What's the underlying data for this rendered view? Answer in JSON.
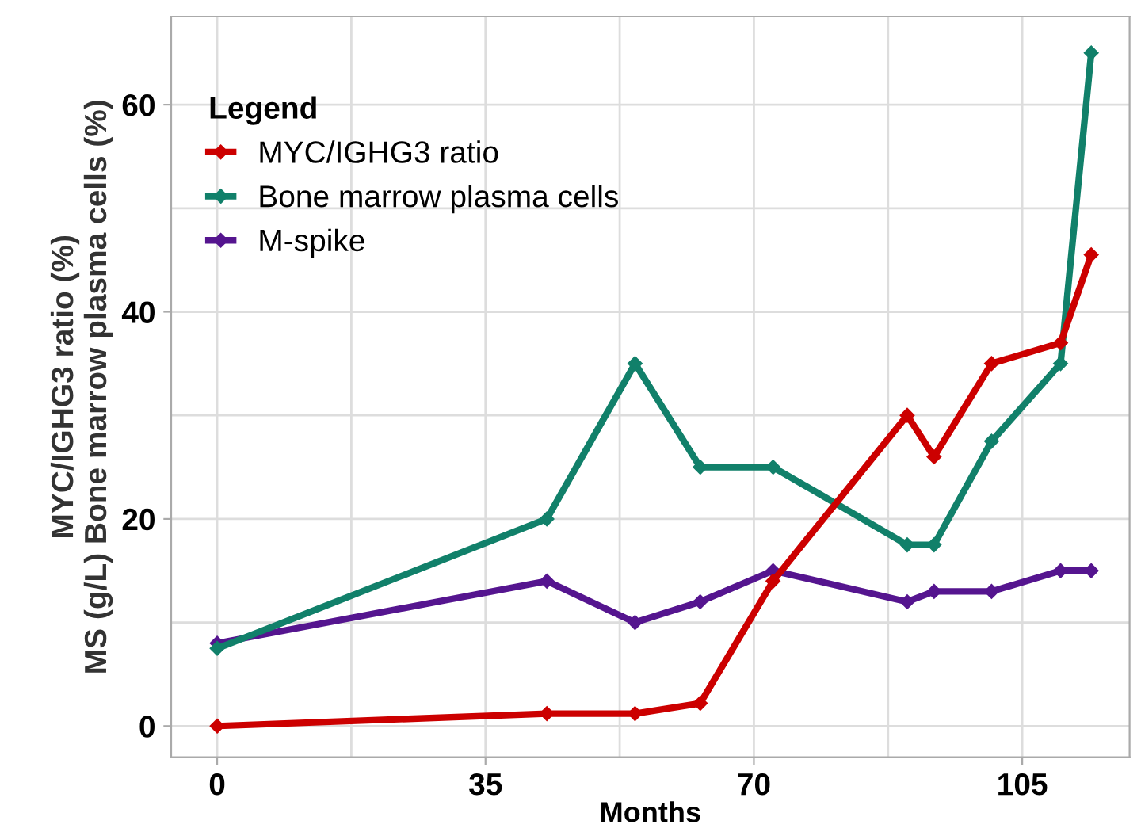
{
  "chart_data": {
    "type": "line",
    "xlabel": "Months",
    "ylabel": "MYC/IGHG3 ratio (%)\nMS (g/L) Bone marrow plasma cells (%)",
    "legend_title": "Legend",
    "x": [
      0,
      43,
      54.5,
      63,
      72.5,
      90,
      93.5,
      101,
      110,
      114
    ],
    "series": [
      {
        "name": "MYC/IGHG3 ratio",
        "color": "#cc0000",
        "values": [
          0,
          1.2,
          1.2,
          2.2,
          14,
          30,
          26,
          35,
          37,
          45.5
        ]
      },
      {
        "name": "Bone marrow plasma cells",
        "color": "#11806a",
        "values": [
          7.5,
          20,
          35,
          25,
          25,
          17.5,
          17.5,
          27.5,
          35,
          65
        ]
      },
      {
        "name": "M-spike",
        "color": "#55158f",
        "values": [
          8,
          14,
          10,
          12,
          15,
          12,
          13,
          13,
          15,
          15
        ]
      }
    ],
    "xlim": [
      -6,
      119
    ],
    "xticks": [
      0,
      35,
      70,
      105
    ],
    "ylim": [
      -3,
      68.5
    ],
    "yticks": [
      0,
      20,
      40,
      60
    ],
    "grid": true,
    "legend": "top left",
    "marker": "diamond",
    "line_style": "solid"
  }
}
